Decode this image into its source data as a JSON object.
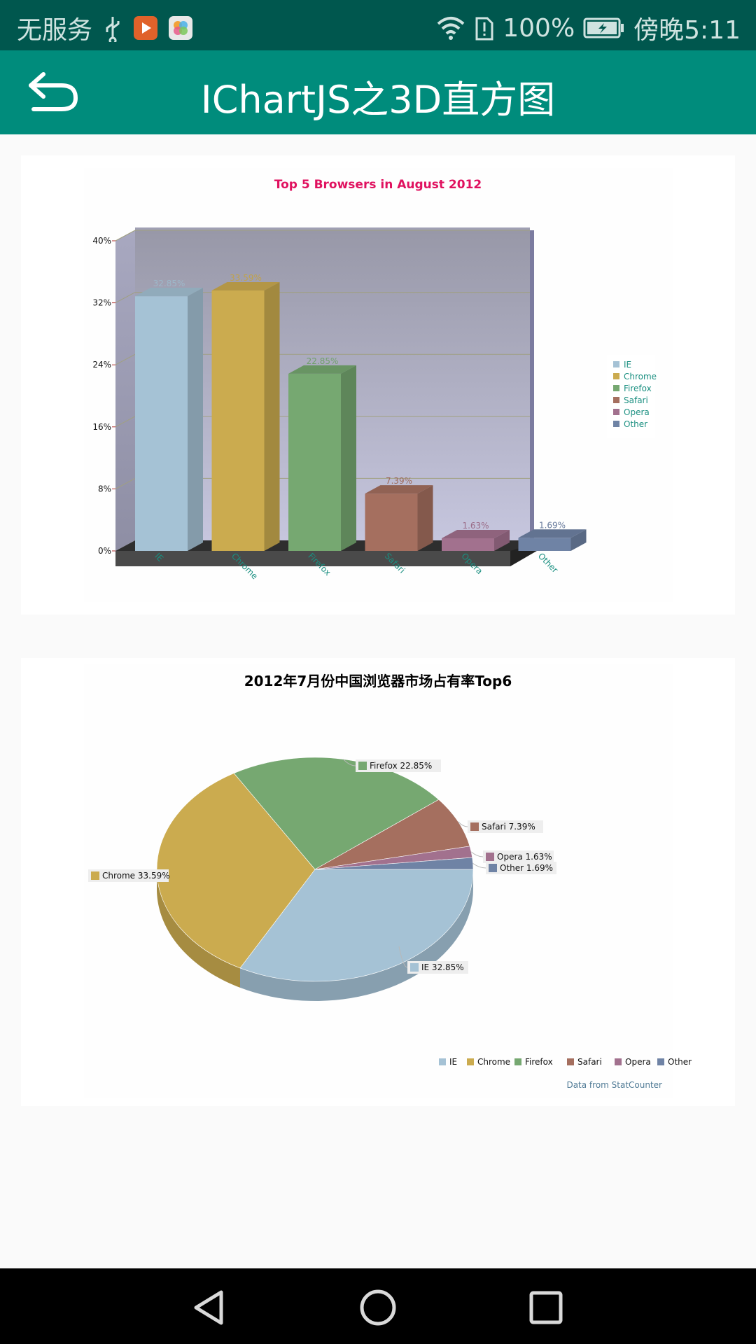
{
  "status_bar": {
    "carrier": "无服务",
    "battery": "100%",
    "time": "傍晚5:11",
    "icons": [
      "usb-icon",
      "video-app-icon",
      "gallery-app-icon",
      "wifi-icon",
      "sim-alert-icon",
      "battery-charging-icon"
    ]
  },
  "app_bar": {
    "title": "IChartJS之3D直方图",
    "back_icon": "back-arrow-icon"
  },
  "chart_data": [
    {
      "type": "bar",
      "title": "Top 5 Browsers in August 2012",
      "categories": [
        "IE",
        "Chrome",
        "Firefox",
        "Safari",
        "Opera",
        "Other"
      ],
      "values": [
        32.85,
        33.59,
        22.85,
        7.39,
        1.63,
        1.69
      ],
      "data_labels": [
        "32.85%",
        "33.59%",
        "22.85%",
        "7.39%",
        "1.63%",
        "1.69%"
      ],
      "colors": [
        "#a5c2d5",
        "#cbab4f",
        "#76a871",
        "#a56f5f",
        "#a2718e",
        "#6f83a5"
      ],
      "ylim": [
        0,
        40
      ],
      "yticks": [
        "0%",
        "8%",
        "16%",
        "24%",
        "32%",
        "40%"
      ],
      "legend": [
        "IE",
        "Chrome",
        "Firefox",
        "Safari",
        "Opera",
        "Other"
      ],
      "legend_position": "right",
      "grid": true,
      "style": "3d",
      "title_color": "#e0115f"
    },
    {
      "type": "pie",
      "title": "2012年7月份中国浏览器市场占有率Top6",
      "labels": [
        "IE",
        "Chrome",
        "Firefox",
        "Safari",
        "Opera",
        "Other"
      ],
      "values": [
        32.85,
        33.59,
        22.85,
        7.39,
        1.63,
        1.69
      ],
      "slice_labels": [
        "IE 32.85%",
        "Chrome 33.59%",
        "Firefox 22.85%",
        "Safari 7.39%",
        "Opera 1.63%",
        "Other 1.69%"
      ],
      "colors": [
        "#a5c2d5",
        "#cbab4f",
        "#76a871",
        "#a56f5f",
        "#a2718e",
        "#6f83a5"
      ],
      "legend": [
        "IE",
        "Chrome",
        "Firefox",
        "Safari",
        "Opera",
        "Other"
      ],
      "legend_position": "bottom-right",
      "footnote": "Data from StatCounter",
      "style": "3d"
    }
  ],
  "nav_bar": {
    "buttons": [
      "back-triangle-icon",
      "home-circle-icon",
      "recents-square-icon"
    ]
  }
}
